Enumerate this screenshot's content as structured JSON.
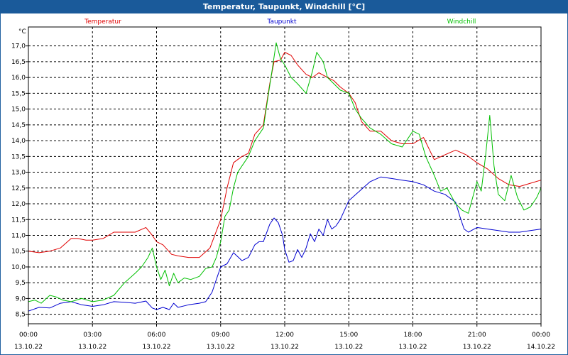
{
  "window": {
    "title": "Temperatur, Taupunkt, Windchill [°C]"
  },
  "chart_data": {
    "type": "line",
    "title": "Temperatur, Taupunkt, Windchill [°C]",
    "ylabel": "°C",
    "xlabel": "",
    "ylim": [
      8.2,
      17.6
    ],
    "xlim": [
      0,
      24
    ],
    "grid": true,
    "yticks": [
      "8,5",
      "9,0",
      "9,5",
      "10,0",
      "10,5",
      "11,0",
      "11,5",
      "12,0",
      "12,5",
      "13,0",
      "13,5",
      "14,0",
      "14,5",
      "15,0",
      "15,5",
      "16,0",
      "16,5",
      "17,0"
    ],
    "ytick_values": [
      8.5,
      9.0,
      9.5,
      10.0,
      10.5,
      11.0,
      11.5,
      12.0,
      12.5,
      13.0,
      13.5,
      14.0,
      14.5,
      15.0,
      15.5,
      16.0,
      16.5,
      17.0
    ],
    "xticks": [
      {
        "x": 0,
        "time": "00:00",
        "date": "13.10.22"
      },
      {
        "x": 3,
        "time": "03:00",
        "date": "13.10.22"
      },
      {
        "x": 6,
        "time": "06:00",
        "date": "13.10.22"
      },
      {
        "x": 9,
        "time": "09:00",
        "date": "13.10.22"
      },
      {
        "x": 12,
        "time": "12:00",
        "date": "13.10.22"
      },
      {
        "x": 15,
        "time": "15:00",
        "date": "13.10.22"
      },
      {
        "x": 18,
        "time": "18:00",
        "date": "13.10.22"
      },
      {
        "x": 21,
        "time": "21:00",
        "date": "13.10.22"
      },
      {
        "x": 24,
        "time": "00:00",
        "date": "14.10.22"
      }
    ],
    "series": [
      {
        "name": "Temperatur",
        "color": "#e00000",
        "legend_pos": "left",
        "x": [
          0,
          0.5,
          1,
          1.5,
          2,
          2.3,
          2.7,
          3,
          3.5,
          4,
          4.5,
          5,
          5.5,
          5.8,
          6,
          6.3,
          6.7,
          7,
          7.5,
          8,
          8.5,
          9,
          9.3,
          9.6,
          10,
          10.3,
          10.6,
          11,
          11.3,
          11.5,
          11.8,
          12,
          12.3,
          12.6,
          13,
          13.3,
          13.6,
          14,
          14.3,
          14.6,
          15,
          15.3,
          15.6,
          16,
          16.5,
          17,
          17.5,
          18,
          18.5,
          19,
          19.5,
          20,
          20.5,
          21,
          21.5,
          22,
          22.5,
          23,
          23.5,
          24
        ],
        "values": [
          10.5,
          10.45,
          10.5,
          10.6,
          10.9,
          10.9,
          10.85,
          10.85,
          10.9,
          11.1,
          11.1,
          11.1,
          11.25,
          11.0,
          10.8,
          10.7,
          10.4,
          10.35,
          10.3,
          10.3,
          10.6,
          11.5,
          12.5,
          13.3,
          13.5,
          13.6,
          14.2,
          14.5,
          15.8,
          16.5,
          16.55,
          16.8,
          16.7,
          16.4,
          16.1,
          16.0,
          16.15,
          16.0,
          15.9,
          15.7,
          15.5,
          15.2,
          14.6,
          14.3,
          14.3,
          14.0,
          13.9,
          13.9,
          14.1,
          13.4,
          13.55,
          13.7,
          13.55,
          13.3,
          13.1,
          12.8,
          12.6,
          12.55,
          12.65,
          12.75
        ]
      },
      {
        "name": "Taupunkt",
        "color": "#0000d0",
        "legend_pos": "center",
        "x": [
          0,
          0.5,
          1,
          1.5,
          2,
          2.5,
          3,
          3.5,
          4,
          4.5,
          5,
          5.5,
          5.8,
          6,
          6.3,
          6.6,
          6.8,
          7,
          7.5,
          8,
          8.3,
          8.6,
          8.8,
          9,
          9.3,
          9.6,
          10,
          10.3,
          10.6,
          10.8,
          11,
          11.3,
          11.5,
          11.7,
          11.9,
          12,
          12.2,
          12.4,
          12.6,
          12.8,
          13,
          13.2,
          13.4,
          13.6,
          13.8,
          14,
          14.2,
          14.4,
          14.6,
          15,
          15.5,
          16,
          16.5,
          17,
          17.5,
          18,
          18.5,
          19,
          19.5,
          20,
          20.2,
          20.4,
          20.6,
          21,
          21.5,
          22,
          22.5,
          23,
          23.5,
          24
        ],
        "values": [
          8.6,
          8.72,
          8.7,
          8.85,
          8.9,
          8.8,
          8.75,
          8.8,
          8.9,
          8.88,
          8.85,
          8.92,
          8.7,
          8.65,
          8.72,
          8.65,
          8.85,
          8.72,
          8.8,
          8.85,
          8.9,
          9.2,
          9.6,
          10.0,
          10.1,
          10.45,
          10.2,
          10.3,
          10.7,
          10.8,
          10.8,
          11.35,
          11.55,
          11.4,
          11.0,
          10.55,
          10.15,
          10.2,
          10.55,
          10.3,
          10.6,
          11.05,
          10.8,
          11.2,
          11.0,
          11.5,
          11.2,
          11.3,
          11.5,
          12.1,
          12.4,
          12.7,
          12.85,
          12.8,
          12.75,
          12.7,
          12.6,
          12.4,
          12.3,
          12.05,
          11.6,
          11.2,
          11.1,
          11.25,
          11.2,
          11.15,
          11.1,
          11.1,
          11.15,
          11.2
        ]
      },
      {
        "name": "Windchill",
        "color": "#00c000",
        "legend_pos": "right",
        "x": [
          0,
          0.3,
          0.6,
          1,
          1.3,
          1.6,
          2,
          2.5,
          3,
          3.5,
          4,
          4.5,
          5,
          5.3,
          5.6,
          5.8,
          6,
          6.2,
          6.4,
          6.6,
          6.8,
          7,
          7.3,
          7.6,
          8,
          8.3,
          8.6,
          8.8,
          9,
          9.2,
          9.4,
          9.6,
          9.8,
          10,
          10.3,
          10.6,
          11,
          11.2,
          11.4,
          11.6,
          11.8,
          12,
          12.3,
          12.6,
          13,
          13.3,
          13.5,
          13.8,
          14,
          14.3,
          14.6,
          15,
          15.3,
          15.6,
          16,
          16.5,
          17,
          17.5,
          18,
          18.3,
          18.6,
          19,
          19.3,
          19.6,
          20,
          20.3,
          20.6,
          21,
          21.2,
          21.4,
          21.6,
          21.8,
          22,
          22.3,
          22.6,
          22.9,
          23.2,
          23.5,
          23.8,
          24
        ],
        "values": [
          8.9,
          8.95,
          8.85,
          9.1,
          9.05,
          8.95,
          8.9,
          9.0,
          8.9,
          8.95,
          9.1,
          9.5,
          9.8,
          10.0,
          10.3,
          10.6,
          10.0,
          9.6,
          9.9,
          9.4,
          9.8,
          9.5,
          9.65,
          9.6,
          9.7,
          9.95,
          10.0,
          10.3,
          10.8,
          11.6,
          11.8,
          12.5,
          13.0,
          13.2,
          13.5,
          14.0,
          14.4,
          15.3,
          16.2,
          17.1,
          16.6,
          16.4,
          16.0,
          15.8,
          15.5,
          16.2,
          16.8,
          16.5,
          16.0,
          15.8,
          15.6,
          15.5,
          15.0,
          14.7,
          14.4,
          14.2,
          13.9,
          13.8,
          14.3,
          14.2,
          13.5,
          12.9,
          12.4,
          12.5,
          12.0,
          11.8,
          11.7,
          12.7,
          12.4,
          13.5,
          14.8,
          13.2,
          12.3,
          12.1,
          12.9,
          12.2,
          11.8,
          11.9,
          12.2,
          12.5
        ]
      }
    ]
  }
}
